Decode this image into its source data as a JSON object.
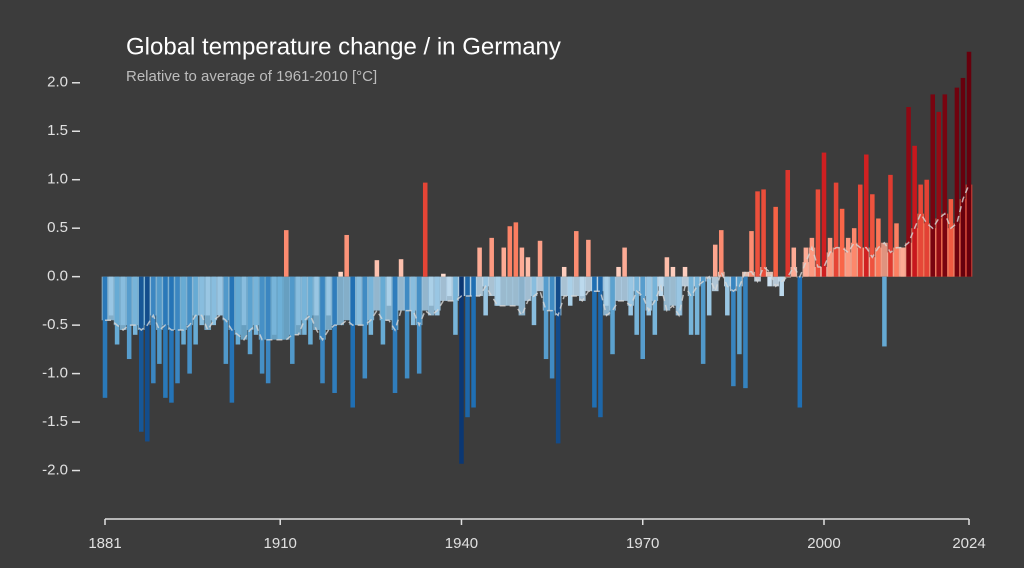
{
  "chart_data": {
    "type": "bar",
    "title": "Global temperature change / in Germany",
    "subtitle": "Relative to average of 1961-2010  [°C]",
    "xlim": [
      1881,
      2024
    ],
    "xticks": [
      1881,
      1910,
      1940,
      1970,
      2000,
      2024
    ],
    "ylim": [
      -2.5,
      2.4
    ],
    "yticks": [
      {
        "value": 2,
        "label": "2.0"
      },
      1.5,
      {
        "value": 1,
        "label": "1.0"
      },
      0.5,
      {
        "value": 0,
        "label": "0.0"
      },
      -0.5,
      {
        "value": -1,
        "label": "-1.0"
      },
      -1.5,
      {
        "value": -2,
        "label": "-2.0"
      }
    ],
    "x": [
      1881,
      1882,
      1883,
      1884,
      1885,
      1886,
      1887,
      1888,
      1889,
      1890,
      1891,
      1892,
      1893,
      1894,
      1895,
      1896,
      1897,
      1898,
      1899,
      1900,
      1901,
      1902,
      1903,
      1904,
      1905,
      1906,
      1907,
      1908,
      1909,
      1910,
      1911,
      1912,
      1913,
      1914,
      1915,
      1916,
      1917,
      1918,
      1919,
      1920,
      1921,
      1922,
      1923,
      1924,
      1925,
      1926,
      1927,
      1928,
      1929,
      1930,
      1931,
      1932,
      1933,
      1934,
      1935,
      1936,
      1937,
      1938,
      1939,
      1940,
      1941,
      1942,
      1943,
      1944,
      1945,
      1946,
      1947,
      1948,
      1949,
      1950,
      1951,
      1952,
      1953,
      1954,
      1955,
      1956,
      1957,
      1958,
      1959,
      1960,
      1961,
      1962,
      1963,
      1964,
      1965,
      1966,
      1967,
      1968,
      1969,
      1970,
      1971,
      1972,
      1973,
      1974,
      1975,
      1976,
      1977,
      1978,
      1979,
      1980,
      1981,
      1982,
      1983,
      1984,
      1985,
      1986,
      1987,
      1988,
      1989,
      1990,
      1991,
      1992,
      1993,
      1994,
      1995,
      1996,
      1997,
      1998,
      1999,
      2000,
      2001,
      2002,
      2003,
      2004,
      2005,
      2006,
      2007,
      2008,
      2009,
      2010,
      2011,
      2012,
      2013,
      2014,
      2015,
      2016,
      2017,
      2018,
      2019,
      2020,
      2021,
      2022,
      2023,
      2024
    ],
    "series": [
      {
        "style": "background-bars-dashed-line",
        "values": [
          -0.45,
          -0.45,
          -0.5,
          -0.55,
          -0.5,
          -0.5,
          -0.55,
          -0.5,
          -0.4,
          -0.55,
          -0.5,
          -0.55,
          -0.55,
          -0.55,
          -0.5,
          -0.4,
          -0.4,
          -0.55,
          -0.45,
          -0.4,
          -0.45,
          -0.55,
          -0.6,
          -0.65,
          -0.55,
          -0.5,
          -0.65,
          -0.65,
          -0.65,
          -0.65,
          -0.65,
          -0.6,
          -0.6,
          -0.45,
          -0.4,
          -0.55,
          -0.65,
          -0.55,
          -0.5,
          -0.5,
          -0.45,
          -0.5,
          -0.5,
          -0.5,
          -0.45,
          -0.35,
          -0.45,
          -0.45,
          -0.55,
          -0.35,
          -0.35,
          -0.35,
          -0.5,
          -0.35,
          -0.4,
          -0.35,
          -0.25,
          -0.25,
          -0.25,
          -0.2,
          -0.2,
          -0.2,
          -0.2,
          -0.1,
          -0.2,
          -0.3,
          -0.3,
          -0.3,
          -0.3,
          -0.4,
          -0.25,
          -0.2,
          -0.15,
          -0.35,
          -0.35,
          -0.4,
          -0.2,
          -0.2,
          -0.2,
          -0.25,
          -0.15,
          -0.15,
          -0.15,
          -0.4,
          -0.35,
          -0.25,
          -0.25,
          -0.3,
          -0.15,
          -0.2,
          -0.35,
          -0.25,
          -0.1,
          -0.35,
          -0.3,
          -0.4,
          -0.1,
          -0.2,
          -0.1,
          -0.05,
          0.0,
          -0.15,
          0.05,
          -0.1,
          -0.15,
          -0.1,
          0.05,
          0.05,
          -0.05,
          0.1,
          0.05,
          -0.1,
          -0.05,
          0.0,
          0.1,
          0.0,
          0.15,
          0.3,
          0.1,
          0.1,
          0.25,
          0.3,
          0.3,
          0.25,
          0.35,
          0.3,
          0.3,
          0.2,
          0.3,
          0.35,
          0.25,
          0.3,
          0.3,
          0.35,
          0.5,
          0.65,
          0.55,
          0.5,
          0.6,
          0.65,
          0.5,
          0.55,
          0.8,
          0.95
        ]
      },
      {
        "style": "bars",
        "values": [
          -1.25,
          -0.4,
          -0.7,
          -0.5,
          -0.85,
          -0.6,
          -1.6,
          -1.7,
          -1.1,
          -0.9,
          -1.25,
          -1.3,
          -1.1,
          -0.7,
          -1.0,
          -0.7,
          -0.5,
          -0.4,
          -0.5,
          -0.4,
          -0.9,
          -1.3,
          -0.7,
          -0.5,
          -0.8,
          -0.6,
          -1.0,
          -1.1,
          -0.6,
          -0.65,
          0.48,
          -0.9,
          -0.5,
          -0.6,
          -0.7,
          -0.4,
          -1.1,
          -0.4,
          -1.2,
          0.05,
          0.43,
          -1.35,
          -0.5,
          -1.05,
          -0.6,
          0.17,
          -0.7,
          -0.3,
          -1.2,
          0.18,
          -1.05,
          -0.5,
          -1.0,
          0.97,
          -0.3,
          -0.4,
          0.03,
          -0.2,
          -0.6,
          -1.93,
          -1.45,
          -1.35,
          0.3,
          -0.4,
          0.4,
          -0.3,
          0.3,
          0.52,
          0.56,
          0.3,
          0.2,
          -0.5,
          0.37,
          -0.85,
          -1.05,
          -1.72,
          0.1,
          -0.3,
          0.47,
          -0.2,
          0.38,
          -1.35,
          -1.45,
          -0.3,
          -0.8,
          0.1,
          0.3,
          -0.4,
          -0.6,
          -0.85,
          -0.4,
          -0.6,
          -0.2,
          0.2,
          0.1,
          -0.4,
          0.1,
          -0.6,
          -0.6,
          -0.9,
          -0.4,
          0.33,
          0.48,
          -0.4,
          -1.13,
          -0.8,
          -1.15,
          0.47,
          0.88,
          0.9,
          -0.1,
          0.72,
          -0.2,
          1.1,
          0.3,
          -1.35,
          0.3,
          0.4,
          0.9,
          1.28,
          0.4,
          0.97,
          0.7,
          0.4,
          0.5,
          0.95,
          1.26,
          0.85,
          0.6,
          -0.72,
          1.05,
          0.55,
          0.3,
          1.75,
          1.35,
          0.95,
          1.0,
          1.88,
          1.7,
          1.88,
          0.8,
          1.95,
          2.05,
          2.32
        ]
      }
    ]
  }
}
